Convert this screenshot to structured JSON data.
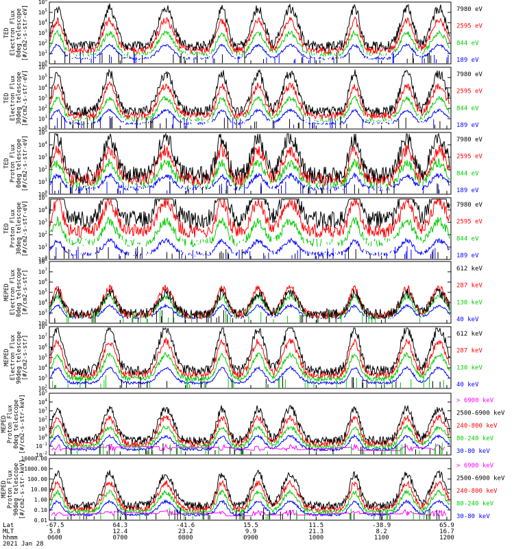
{
  "colors": {
    "black": "#000000",
    "red": "#ff0000",
    "green": "#00cc00",
    "blue": "#0000ff",
    "magenta": "#ff00ff"
  },
  "chart_data": [
    {
      "type": "line",
      "ylabel": [
        "TED",
        "Electron Flux",
        "0deg telescope",
        "[#/cm2-s-str-eV]"
      ],
      "ylim": [
        1,
        1000000
      ],
      "yscale": "log",
      "ytick_labels": [
        "10^0",
        "10^1",
        "10^2",
        "10^3",
        "10^4",
        "10^5",
        "10^6"
      ],
      "series": [
        {
          "name": "7980 eV",
          "color": "black"
        },
        {
          "name": "2595 eV",
          "color": "red"
        },
        {
          "name": "844 eV",
          "color": "green"
        },
        {
          "name": "189 eV",
          "color": "blue"
        }
      ]
    },
    {
      "type": "line",
      "ylabel": [
        "TED",
        "Electron Flux",
        "30deg telescope",
        "[#/cm2-s-str-eV]"
      ],
      "ylim": [
        1,
        1000000
      ],
      "yscale": "log",
      "ytick_labels": [
        "10^0",
        "10^1",
        "10^2",
        "10^3",
        "10^4",
        "10^5",
        "10^6"
      ],
      "series": [
        {
          "name": "7980 eV",
          "color": "black"
        },
        {
          "name": "2595 eV",
          "color": "red"
        },
        {
          "name": "844 eV",
          "color": "green"
        },
        {
          "name": "189 eV",
          "color": "blue"
        }
      ]
    },
    {
      "type": "line",
      "ylabel": [
        "TED",
        "Proton Flux",
        "0deg telescope",
        "[#/cm2-s-str-eV]"
      ],
      "ylim": [
        1,
        100000
      ],
      "yscale": "log",
      "ytick_labels": [
        "10^0",
        "10^1",
        "10^2",
        "10^3",
        "10^4",
        "10^5"
      ],
      "series": [
        {
          "name": "7980 eV",
          "color": "black"
        },
        {
          "name": "2595 eV",
          "color": "red"
        },
        {
          "name": "844 eV",
          "color": "green"
        },
        {
          "name": "189 eV",
          "color": "blue"
        }
      ]
    },
    {
      "type": "line",
      "ylabel": [
        "TED",
        "Proton Flux",
        "30deg telescope",
        "[#/cm2-s-str-eV]"
      ],
      "ylim": [
        1,
        100000
      ],
      "yscale": "log",
      "ytick_labels": [
        "10^0",
        "10^1",
        "10^2",
        "10^3",
        "10^4",
        "10^5"
      ],
      "series": [
        {
          "name": "7980 eV",
          "color": "black"
        },
        {
          "name": "2595 eV",
          "color": "red"
        },
        {
          "name": "844 eV",
          "color": "green"
        },
        {
          "name": "189 eV",
          "color": "blue"
        }
      ]
    },
    {
      "type": "line",
      "ylabel": [
        "MEPED",
        "Electron Flux",
        "0deg telescope",
        "[#/cm2-s-str]"
      ],
      "ylim": [
        100,
        1000000000
      ],
      "yscale": "log",
      "ytick_labels": [
        "10^2",
        "10^3",
        "10^4",
        "10^5",
        "10^6",
        "10^7",
        "10^8"
      ],
      "series": [
        {
          "name": "612 keV",
          "color": "black"
        },
        {
          "name": "287 keV",
          "color": "red"
        },
        {
          "name": "130 keV",
          "color": "green"
        },
        {
          "name": "40 keV",
          "color": "blue"
        }
      ]
    },
    {
      "type": "line",
      "ylabel": [
        "MEPED",
        "Electron Flux",
        "90deg telescope",
        "[#/cm2-s-str]"
      ],
      "ylim": [
        100,
        1000000000
      ],
      "yscale": "log",
      "ytick_labels": [
        "10^2",
        "10^3",
        "10^4",
        "10^5",
        "10^6",
        "10^7",
        "10^8"
      ],
      "series": [
        {
          "name": "612 keV",
          "color": "black"
        },
        {
          "name": "287 keV",
          "color": "red"
        },
        {
          "name": "130 keV",
          "color": "green"
        },
        {
          "name": "40 keV",
          "color": "blue"
        }
      ]
    },
    {
      "type": "line",
      "ylabel": [
        "MEPED",
        "Proton Flux",
        "0deg telescope",
        "[#/cm2-s-str-keV]"
      ],
      "ylim": [
        0.01,
        100000
      ],
      "yscale": "log",
      "ytick_labels": [
        "10^-2",
        "10^-1",
        "10^0",
        "10^1",
        "10^2",
        "10^3",
        "10^4",
        "10^5"
      ],
      "series": [
        {
          "name": "> 6900 keV",
          "color": "magenta"
        },
        {
          "name": "2500-6900 keV",
          "color": "black"
        },
        {
          "name": "240-800 keV",
          "color": "red"
        },
        {
          "name": "80-240 keV",
          "color": "green"
        },
        {
          "name": "30-80 keV",
          "color": "blue"
        }
      ]
    },
    {
      "type": "line",
      "ylabel": [
        "MEPED",
        "Proton Flux",
        "90deg telescope",
        "[#/cm2-s-str-keV]"
      ],
      "ylim": [
        0.01,
        10000
      ],
      "yscale": "log",
      "ytick_labels": [
        "0.01",
        "0.10",
        "1.00",
        "10.00",
        "100.00",
        "1000.00",
        "10000.00"
      ],
      "series": [
        {
          "name": "> 6900 keV",
          "color": "magenta"
        },
        {
          "name": "2500-6900 keV",
          "color": "black"
        },
        {
          "name": "240-800 keV",
          "color": "red"
        },
        {
          "name": "80-240 keV",
          "color": "green"
        },
        {
          "name": "30-80 keV",
          "color": "blue"
        }
      ]
    }
  ],
  "x_axis": {
    "row_labels": [
      "Lat",
      "MLT",
      "hhmm"
    ],
    "date": "2021 Jan 28",
    "ticks": [
      {
        "lat": "-67.5",
        "mlt": "5.8",
        "hhmm": "0600"
      },
      {
        "lat": "64.3",
        "mlt": "12.4",
        "hhmm": "0700"
      },
      {
        "lat": "-41.6",
        "mlt": "23.2",
        "hhmm": "0800"
      },
      {
        "lat": "15.5",
        "mlt": "9.9",
        "hhmm": "0900"
      },
      {
        "lat": "11.5",
        "mlt": "21.3",
        "hhmm": "1000"
      },
      {
        "lat": "-38.9",
        "mlt": "8.2",
        "hhmm": "1100"
      },
      {
        "lat": "65.9",
        "mlt": "16.7",
        "hhmm": "1200"
      }
    ]
  }
}
